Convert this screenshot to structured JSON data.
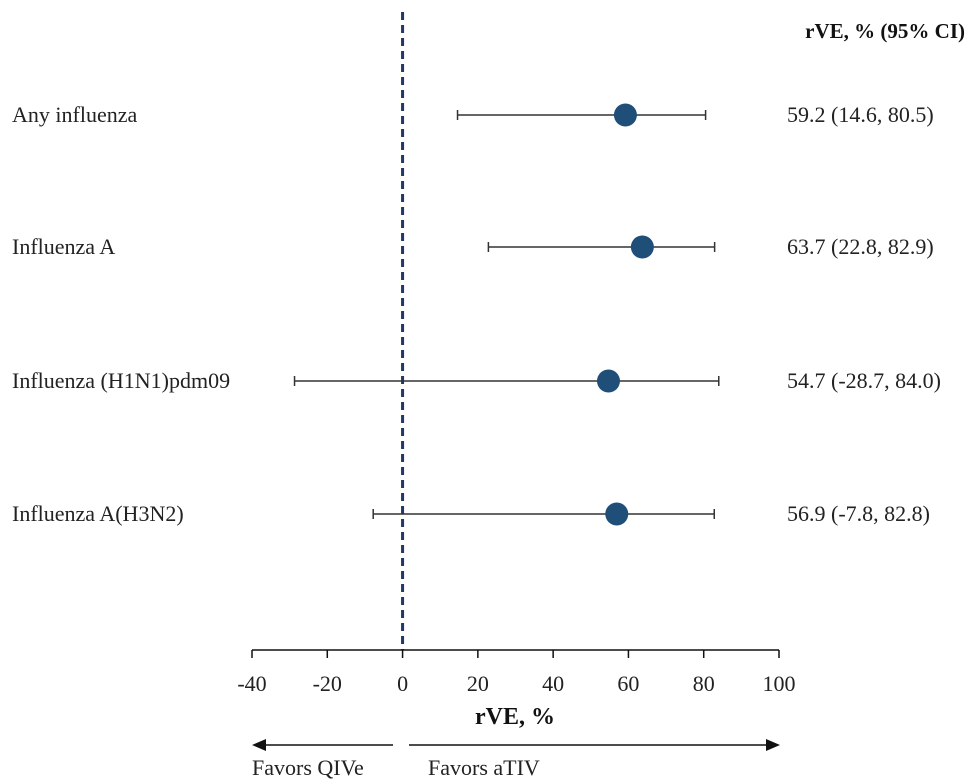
{
  "chart_data": {
    "type": "forest",
    "title": "",
    "xlabel": "rVE, %",
    "column_header": "rVE, % (95% CI)",
    "xlim": [
      -40,
      100
    ],
    "xticks": [
      -40,
      -20,
      0,
      20,
      40,
      60,
      80,
      100
    ],
    "xtick_labels": [
      "-40",
      "-20",
      "0",
      "20",
      "40",
      "60",
      "80",
      "100"
    ],
    "reference_line": 0,
    "rows": [
      {
        "label": "Any influenza",
        "estimate": 59.2,
        "lower": 14.6,
        "upper": 80.5,
        "ci_text": "59.2 (14.6, 80.5)"
      },
      {
        "label": "Influenza A",
        "estimate": 63.7,
        "lower": 22.8,
        "upper": 82.9,
        "ci_text": "63.7 (22.8, 82.9)"
      },
      {
        "label": "Influenza (H1N1)pdm09",
        "estimate": 54.7,
        "lower": -28.7,
        "upper": 84.0,
        "ci_text": "54.7 (-28.7, 84.0)"
      },
      {
        "label": "Influenza A(H3N2)",
        "estimate": 56.9,
        "lower": -7.8,
        "upper": 82.8,
        "ci_text": "56.9 (-7.8, 82.8)"
      }
    ],
    "favors_left": "Favors QIVe",
    "favors_right": "Favors aTIV",
    "marker_color": "#1f4e79",
    "reference_line_color": "#1f3864"
  }
}
